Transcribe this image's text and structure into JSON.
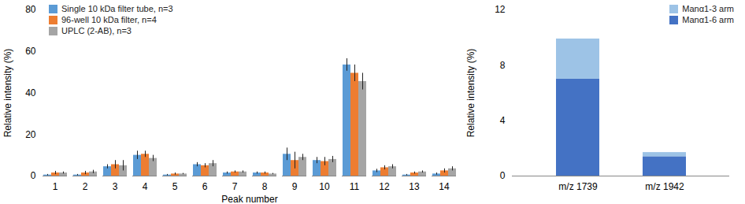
{
  "chart_data": [
    {
      "type": "bar",
      "x_label": "Peak number",
      "y_label": "Relative intensity (%)",
      "categories": [
        "1",
        "2",
        "3",
        "4",
        "5",
        "6",
        "7",
        "8",
        "9",
        "10",
        "11",
        "12",
        "13",
        "14"
      ],
      "ylim": [
        0,
        80
      ],
      "yticks": [
        0,
        20,
        40,
        60,
        80
      ],
      "legend": "top-left",
      "series": [
        {
          "name": "Single 10 kDa filter tube, n=3",
          "color": "#5B9BD5",
          "values": [
            0.5,
            0.5,
            4.5,
            10,
            0.5,
            5.5,
            1.5,
            1.5,
            10.5,
            7.5,
            53.5,
            2.5,
            0.5,
            1
          ],
          "errors": [
            0.3,
            0.3,
            1,
            2,
            0.3,
            1,
            0.5,
            0.5,
            3,
            1.5,
            3,
            0.8,
            0.3,
            0.5
          ]
        },
        {
          "name": "96-well 10 kDa filter, n=4",
          "color": "#ED7D31",
          "values": [
            1.5,
            1.5,
            5.5,
            10.5,
            1,
            5,
            2,
            1.5,
            7.5,
            7,
            49.5,
            4,
            1.5,
            2.5
          ],
          "errors": [
            0.8,
            0.8,
            2,
            1.5,
            0.5,
            1,
            0.5,
            0.5,
            4,
            2,
            4,
            1,
            0.5,
            1
          ]
        },
        {
          "name": "UPLC (2-AB), n=3",
          "color": "#A5A5A5",
          "values": [
            1.5,
            2,
            5,
            8.5,
            1,
            6,
            2,
            1,
            9,
            8,
            45.5,
            4.5,
            2,
            3.5
          ],
          "errors": [
            0.5,
            0.8,
            2.5,
            1.5,
            0.3,
            1.5,
            0.5,
            0.3,
            1.5,
            1.5,
            4,
            1,
            0.5,
            1
          ]
        }
      ]
    },
    {
      "type": "bar",
      "stacked": true,
      "y_label": "Relative intensity (%)",
      "categories": [
        "m/z 1739",
        "m/z 1942"
      ],
      "ylim": [
        0,
        12
      ],
      "yticks": [
        0,
        4,
        8,
        12
      ],
      "legend": "top-right",
      "series": [
        {
          "name": "Manα1-6 arm",
          "color": "#4472C4",
          "values": [
            7,
            1.4
          ]
        },
        {
          "name": "Manα1-3 arm",
          "color": "#9DC3E6",
          "values": [
            2.9,
            0.3
          ]
        }
      ]
    }
  ]
}
